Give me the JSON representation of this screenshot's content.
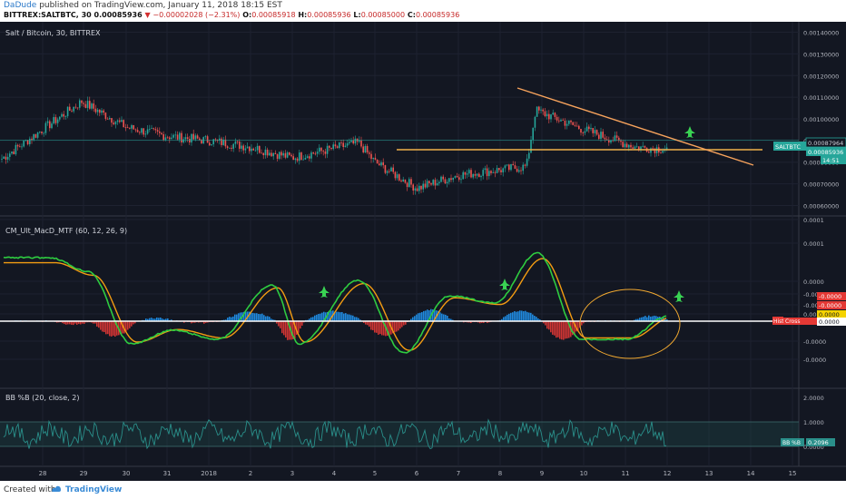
{
  "header": {
    "user": "DaDude",
    "published_text": "published on TradingView.com, January 11, 2018 18:15 EST",
    "symbol_line": "BITTREX:SALTBTC, 30",
    "last": "0.00085936",
    "change": "−0.00002028 (−2.31%)",
    "o_label": "O:",
    "o": "0.00085918",
    "h_label": "H:",
    "h": "0.00085936",
    "l_label": "L:",
    "l": "0.00085000",
    "c_label": "C:",
    "c": "0.00085936"
  },
  "panes": {
    "price_title": "Salt / Bitcoin, 30, BITTREX",
    "macd_title": "CM_Ult_MacD_MTF (60, 12, 26, 9)",
    "bb_title": "BB %B (20, close, 2)"
  },
  "price_axis_labels": [
    "0.00140000",
    "0.00130000",
    "0.00120000",
    "0.00110000",
    "0.00100000",
    "0.00090000",
    "0.00080000",
    "0.00070000",
    "0.00060000"
  ],
  "price_tags": {
    "symbol": "SALTBTC",
    "hline": "0.00087964",
    "last": "0.00085936",
    "countdown": "14:51"
  },
  "macd_axis_labels": [
    "0.0001",
    "0.0001",
    "0.0000",
    "-0.0000",
    "-0.0000",
    "0.0000",
    "-0.0000",
    "-0.0000"
  ],
  "macd_tags": {
    "red1": "-0.0000",
    "red2": "-0.0000",
    "yellow": "0.0000",
    "white": "0.0000",
    "hist_label": "Hist",
    "cross_label": "Cross",
    "cross_value": "-0.0000"
  },
  "bb_axis_labels": [
    "2.0000",
    "1.0000",
    "0.0000"
  ],
  "bb_tags": {
    "label": "BB %B",
    "value": "0.2096"
  },
  "time_labels": [
    "28",
    "29",
    "30",
    "31",
    "2018",
    "2",
    "3",
    "4",
    "5",
    "6",
    "7",
    "8",
    "9",
    "10",
    "11",
    "12",
    "13",
    "14",
    "15"
  ],
  "footer": {
    "created_with": "Created with",
    "brand": "TradingView"
  },
  "colors": {
    "background": "#131722",
    "up": "#26a69a",
    "down": "#ef5350",
    "trendline": "#f7a35c",
    "support": "#f0b04a",
    "macd_fast": "#2ecc40",
    "macd_slow": "#f39c12",
    "hist_pos": "#2196f3",
    "hist_neg": "#e53935",
    "bb_line": "#2a8f8a",
    "arrow": "#39d353"
  },
  "icons": [
    "jet-arrow-icon",
    "tradingview-logo-icon"
  ],
  "chart_data": {
    "type": "line",
    "title": "Salt / Bitcoin, 30, BITTREX",
    "x": [
      "28",
      "29",
      "30",
      "31",
      "2018",
      "2",
      "3",
      "4",
      "5",
      "6",
      "7",
      "8",
      "9",
      "10",
      "11",
      "12"
    ],
    "series": [
      {
        "name": "Salt / Bitcoin, 30, BITTREX",
        "values": [
          0.00081,
          0.00108,
          0.00096,
          0.00092,
          0.0009,
          0.00087,
          0.00082,
          0.00089,
          0.0008,
          0.00068,
          0.00074,
          0.00078,
          0.00104,
          0.00095,
          0.00087,
          0.00086
        ]
      },
      {
        "name": "CM_Ult_MacD_MTF (60, 12, 26, 9)",
        "values": [
          4e-05,
          5e-05,
          -2e-05,
          -1e-05,
          -3e-05,
          -1e-05,
          -2e-05,
          3e-05,
          -2e-05,
          -3e-05,
          1e-05,
          1e-05,
          8e-05,
          -1e-05,
          -2e-05,
          -5e-06
        ]
      },
      {
        "name": "BB %B (20, close, 2)",
        "values": [
          0.6,
          0.9,
          0.5,
          0.4,
          0.6,
          0.5,
          0.6,
          0.7,
          0.4,
          0.5,
          0.6,
          0.6,
          0.8,
          0.5,
          0.4,
          0.2096
        ]
      }
    ],
    "y_range_price": [
      0.00056,
      0.00144
    ],
    "last_value": 0.00085936,
    "hline_value": 0.00087964,
    "bb_last": 0.2096,
    "grid": true
  }
}
